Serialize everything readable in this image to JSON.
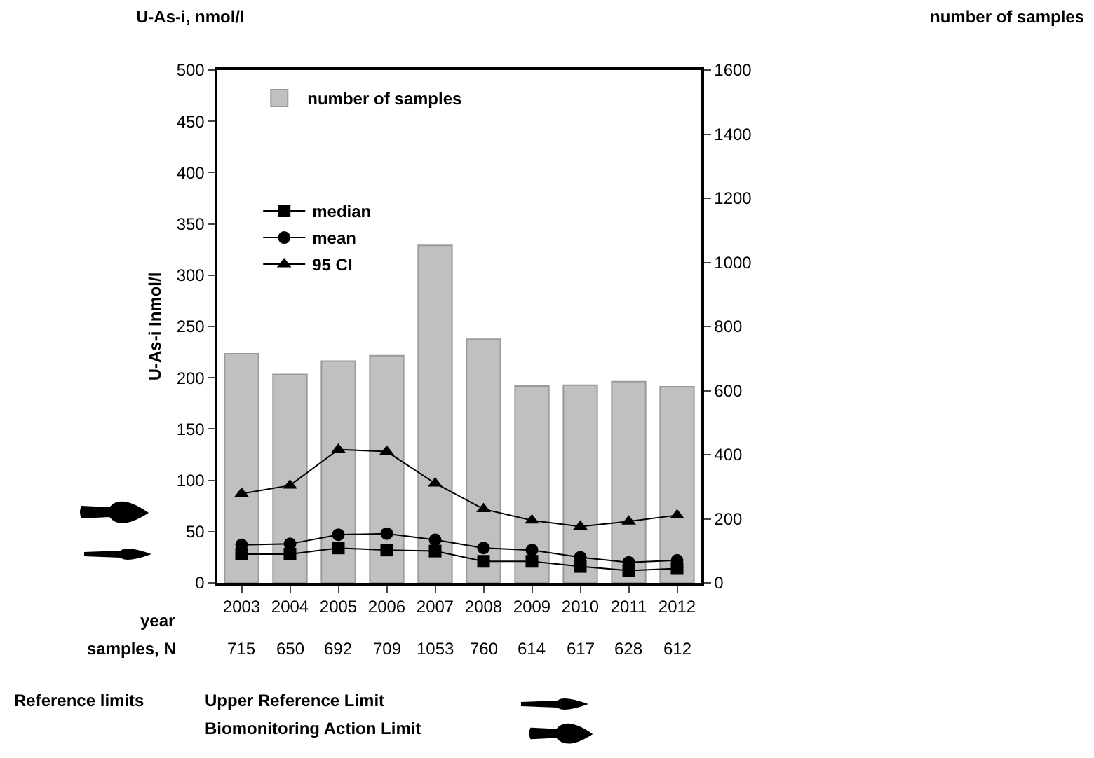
{
  "chart_data": {
    "type": "bar",
    "ylabel": "U-As-i Inmol/l",
    "xlabel": "year",
    "annotations": [
      "U-As-i, nmol/l",
      "samples, N",
      "Reference limits",
      "Upper Reference Limit",
      "Biomonitoring Action Limit",
      "number of samples"
    ],
    "categories": [
      "2003",
      "2004",
      "2005",
      "2006",
      "2007",
      "2008",
      "2009",
      "2010",
      "2011",
      "2012"
    ],
    "series": [
      {
        "name": "number of samples",
        "axis": "y2",
        "color": "#c0c0c0",
        "values": [
          715,
          650,
          692,
          709,
          1053,
          760,
          614,
          617,
          628,
          612
        ],
        "value_labels": [
          "715",
          "650",
          "692",
          "709",
          "1053",
          "760",
          "614",
          "617",
          "628",
          "612"
        ]
      },
      {
        "name": "median",
        "type": "line",
        "marker": "square",
        "color": "#000000",
        "values": [
          28,
          28,
          34,
          32,
          31,
          21,
          21,
          16,
          12,
          14
        ]
      },
      {
        "name": "mean",
        "type": "line",
        "marker": "circle",
        "color": "#000000",
        "values": [
          37,
          38,
          47,
          48,
          42,
          34,
          32,
          25,
          20,
          22
        ]
      },
      {
        "name": "95 CI",
        "type": "line",
        "marker": "triangle",
        "color": "#000000",
        "values": [
          87,
          95,
          130,
          128,
          97,
          72,
          61,
          55,
          60,
          66
        ]
      }
    ],
    "ylim": [
      0,
      500
    ],
    "yticks": [
      0,
      50,
      100,
      150,
      200,
      250,
      300,
      350,
      400,
      450,
      500
    ],
    "y2lim": [
      0,
      1600
    ],
    "y2ticks": [
      0,
      200,
      400,
      600,
      800,
      1000,
      1200,
      1400,
      1600
    ],
    "grid": false,
    "legend": "top left",
    "line_style": "solid"
  }
}
